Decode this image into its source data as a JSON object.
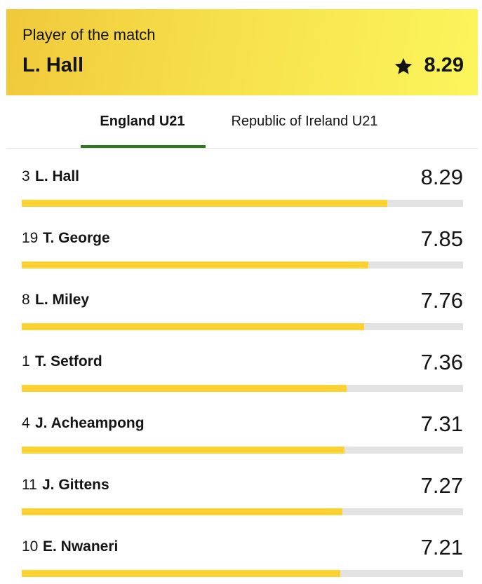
{
  "header": {
    "title": "Player of the match",
    "player": "L. Hall",
    "rating": 8.29
  },
  "tabs": [
    "England U21",
    "Republic of Ireland U21"
  ],
  "active_tab": 0,
  "xlim": [
    0,
    10
  ],
  "players": [
    {
      "number": 3,
      "name": "L. Hall",
      "rating": 8.29
    },
    {
      "number": 19,
      "name": "T. George",
      "rating": 7.85
    },
    {
      "number": 8,
      "name": "L. Miley",
      "rating": 7.76
    },
    {
      "number": 1,
      "name": "T. Setford",
      "rating": 7.36
    },
    {
      "number": 4,
      "name": "J. Acheampong",
      "rating": 7.31
    },
    {
      "number": 11,
      "name": "J. Gittens",
      "rating": 7.27
    },
    {
      "number": 10,
      "name": "E. Nwaneri",
      "rating": 7.21
    }
  ]
}
